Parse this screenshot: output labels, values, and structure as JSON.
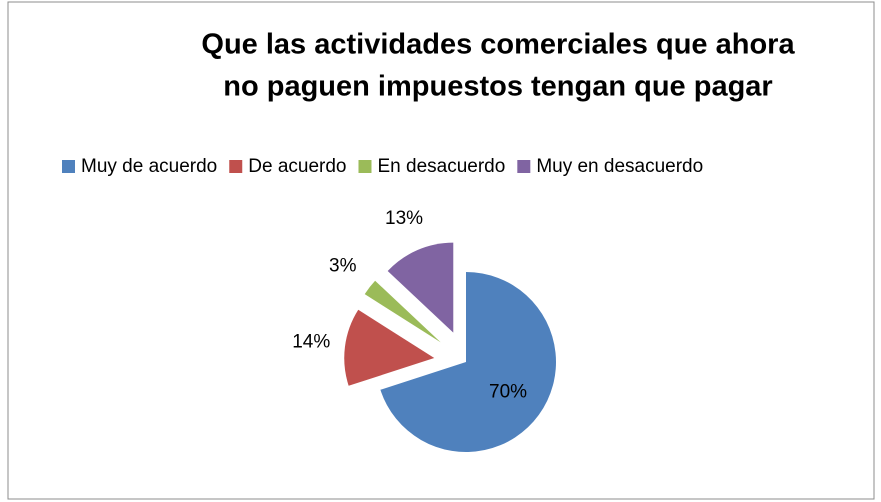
{
  "chart_data": {
    "type": "pie",
    "title": [
      "Que las actividades comerciales que ahora",
      "no paguen impuestos tengan que pagar"
    ],
    "categories": [
      "Muy de acuerdo",
      "De acuerdo",
      "En desacuerdo",
      "Muy en desacuerdo"
    ],
    "values": [
      70,
      14,
      3,
      13
    ],
    "value_labels": [
      "70%",
      "14%",
      "3%",
      "13%"
    ],
    "colors": [
      "#4f81bd",
      "#c0504d",
      "#9bbb59",
      "#8064a2"
    ],
    "legend": "top"
  }
}
